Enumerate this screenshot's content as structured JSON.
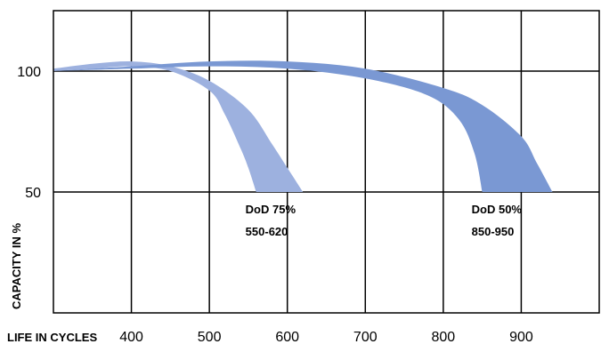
{
  "chart_data": {
    "type": "area",
    "xlabel": "LIFE IN CYCLES",
    "ylabel": "CAPACITY IN %",
    "x_ticks": [
      "400",
      "500",
      "600",
      "700",
      "800",
      "900"
    ],
    "y_ticks": [
      "50",
      "100"
    ],
    "xlim": [
      300,
      1000
    ],
    "ylim": [
      0,
      125
    ],
    "grid": true,
    "series": [
      {
        "upper_x": [
          300,
          350,
          400,
          450,
          500,
          550,
          580,
          600,
          620
        ],
        "upper_y": [
          101,
          103,
          104,
          102,
          96,
          84,
          70,
          60,
          50
        ],
        "lower_x": [
          300,
          350,
          400,
          450,
          500,
          520,
          540,
          550,
          560
        ],
        "lower_y": [
          100,
          101,
          102,
          100,
          92,
          82,
          68,
          60,
          50
        ],
        "color": "#9db1df",
        "annotation": [
          "DoD 75%",
          "550-620"
        ]
      },
      {
        "upper_x": [
          300,
          400,
          500,
          600,
          700,
          800,
          850,
          900,
          920,
          940
        ],
        "upper_y": [
          100,
          102,
          104,
          104,
          101,
          93,
          86,
          73,
          62,
          50
        ],
        "lower_x": [
          300,
          400,
          500,
          600,
          700,
          780,
          820,
          840,
          850
        ],
        "lower_y": [
          100,
          101,
          102,
          101,
          97,
          90,
          80,
          66,
          50
        ],
        "color": "#7a98d3",
        "annotation": [
          "DoD 50%",
          "850-950"
        ]
      }
    ]
  }
}
